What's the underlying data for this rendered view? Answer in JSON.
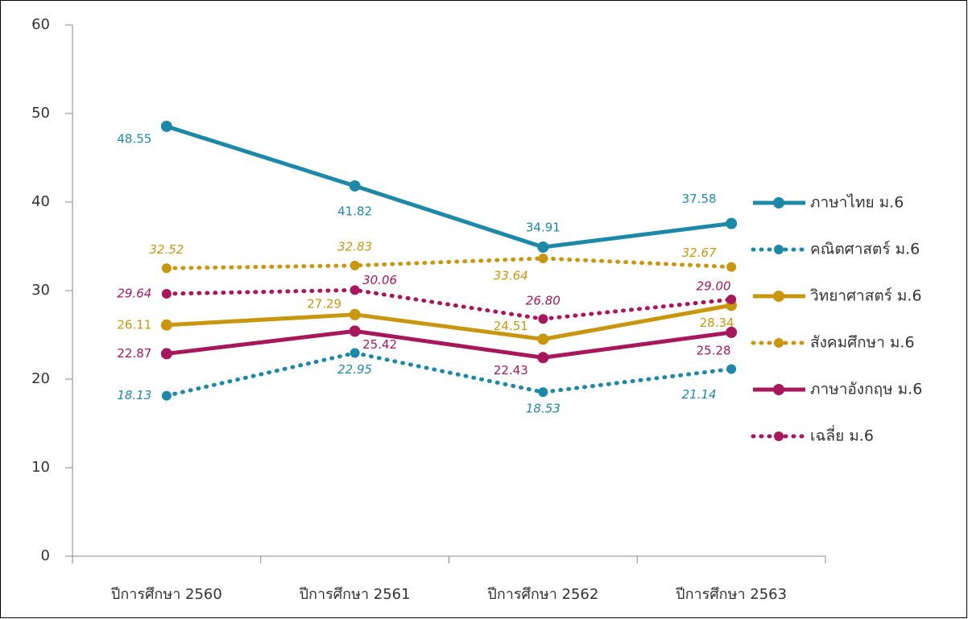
{
  "chart_data": {
    "type": "line",
    "categories": [
      "ปีการศึกษา 2560",
      "ปีการศึกษา 2561",
      "ปีการศึกษา 2562",
      "ปีการศึกษา 2563"
    ],
    "ylim": [
      0,
      60
    ],
    "yticks": [
      0,
      10,
      20,
      30,
      40,
      50,
      60
    ],
    "grid": false,
    "legend": "right",
    "series": [
      {
        "name": "ภาษาไทย ม.6",
        "color": "#1e88a8",
        "line_style": "solid",
        "values": [
          48.55,
          41.82,
          34.91,
          37.58
        ],
        "value_labels": [
          "48.55",
          "41.82",
          "34.91",
          "37.58"
        ]
      },
      {
        "name": "คณิตศาสตร์ ม.6",
        "color": "#1e88a8",
        "line_style": "dotted",
        "values": [
          18.13,
          22.95,
          18.53,
          21.14
        ],
        "value_labels": [
          "18.13",
          "22.95",
          "18.53",
          "21.14"
        ]
      },
      {
        "name": "วิทยาศาสตร์ ม.6",
        "color": "#c9960f",
        "line_style": "solid",
        "values": [
          26.11,
          27.29,
          24.51,
          28.34
        ],
        "value_labels": [
          "26.11",
          "27.29",
          "24.51",
          "28.34"
        ]
      },
      {
        "name": "สังคมศึกษา ม.6",
        "color": "#c9960f",
        "line_style": "dotted",
        "values": [
          32.52,
          32.83,
          33.64,
          32.67
        ],
        "value_labels": [
          "32.52",
          "32.83",
          "33.64",
          "32.67"
        ]
      },
      {
        "name": "ภาษาอังกฤษ ม.6",
        "color": "#a6175c",
        "line_style": "solid",
        "values": [
          22.87,
          25.42,
          22.43,
          25.28
        ],
        "value_labels": [
          "22.87",
          "25.42",
          "22.43",
          "25.28"
        ]
      },
      {
        "name": "เฉลี่ย ม.6",
        "color": "#a6175c",
        "line_style": "dotted",
        "values": [
          29.64,
          30.06,
          26.8,
          29.0
        ],
        "value_labels": [
          "29.64",
          "30.06",
          "26.80",
          "29.00"
        ]
      }
    ]
  }
}
